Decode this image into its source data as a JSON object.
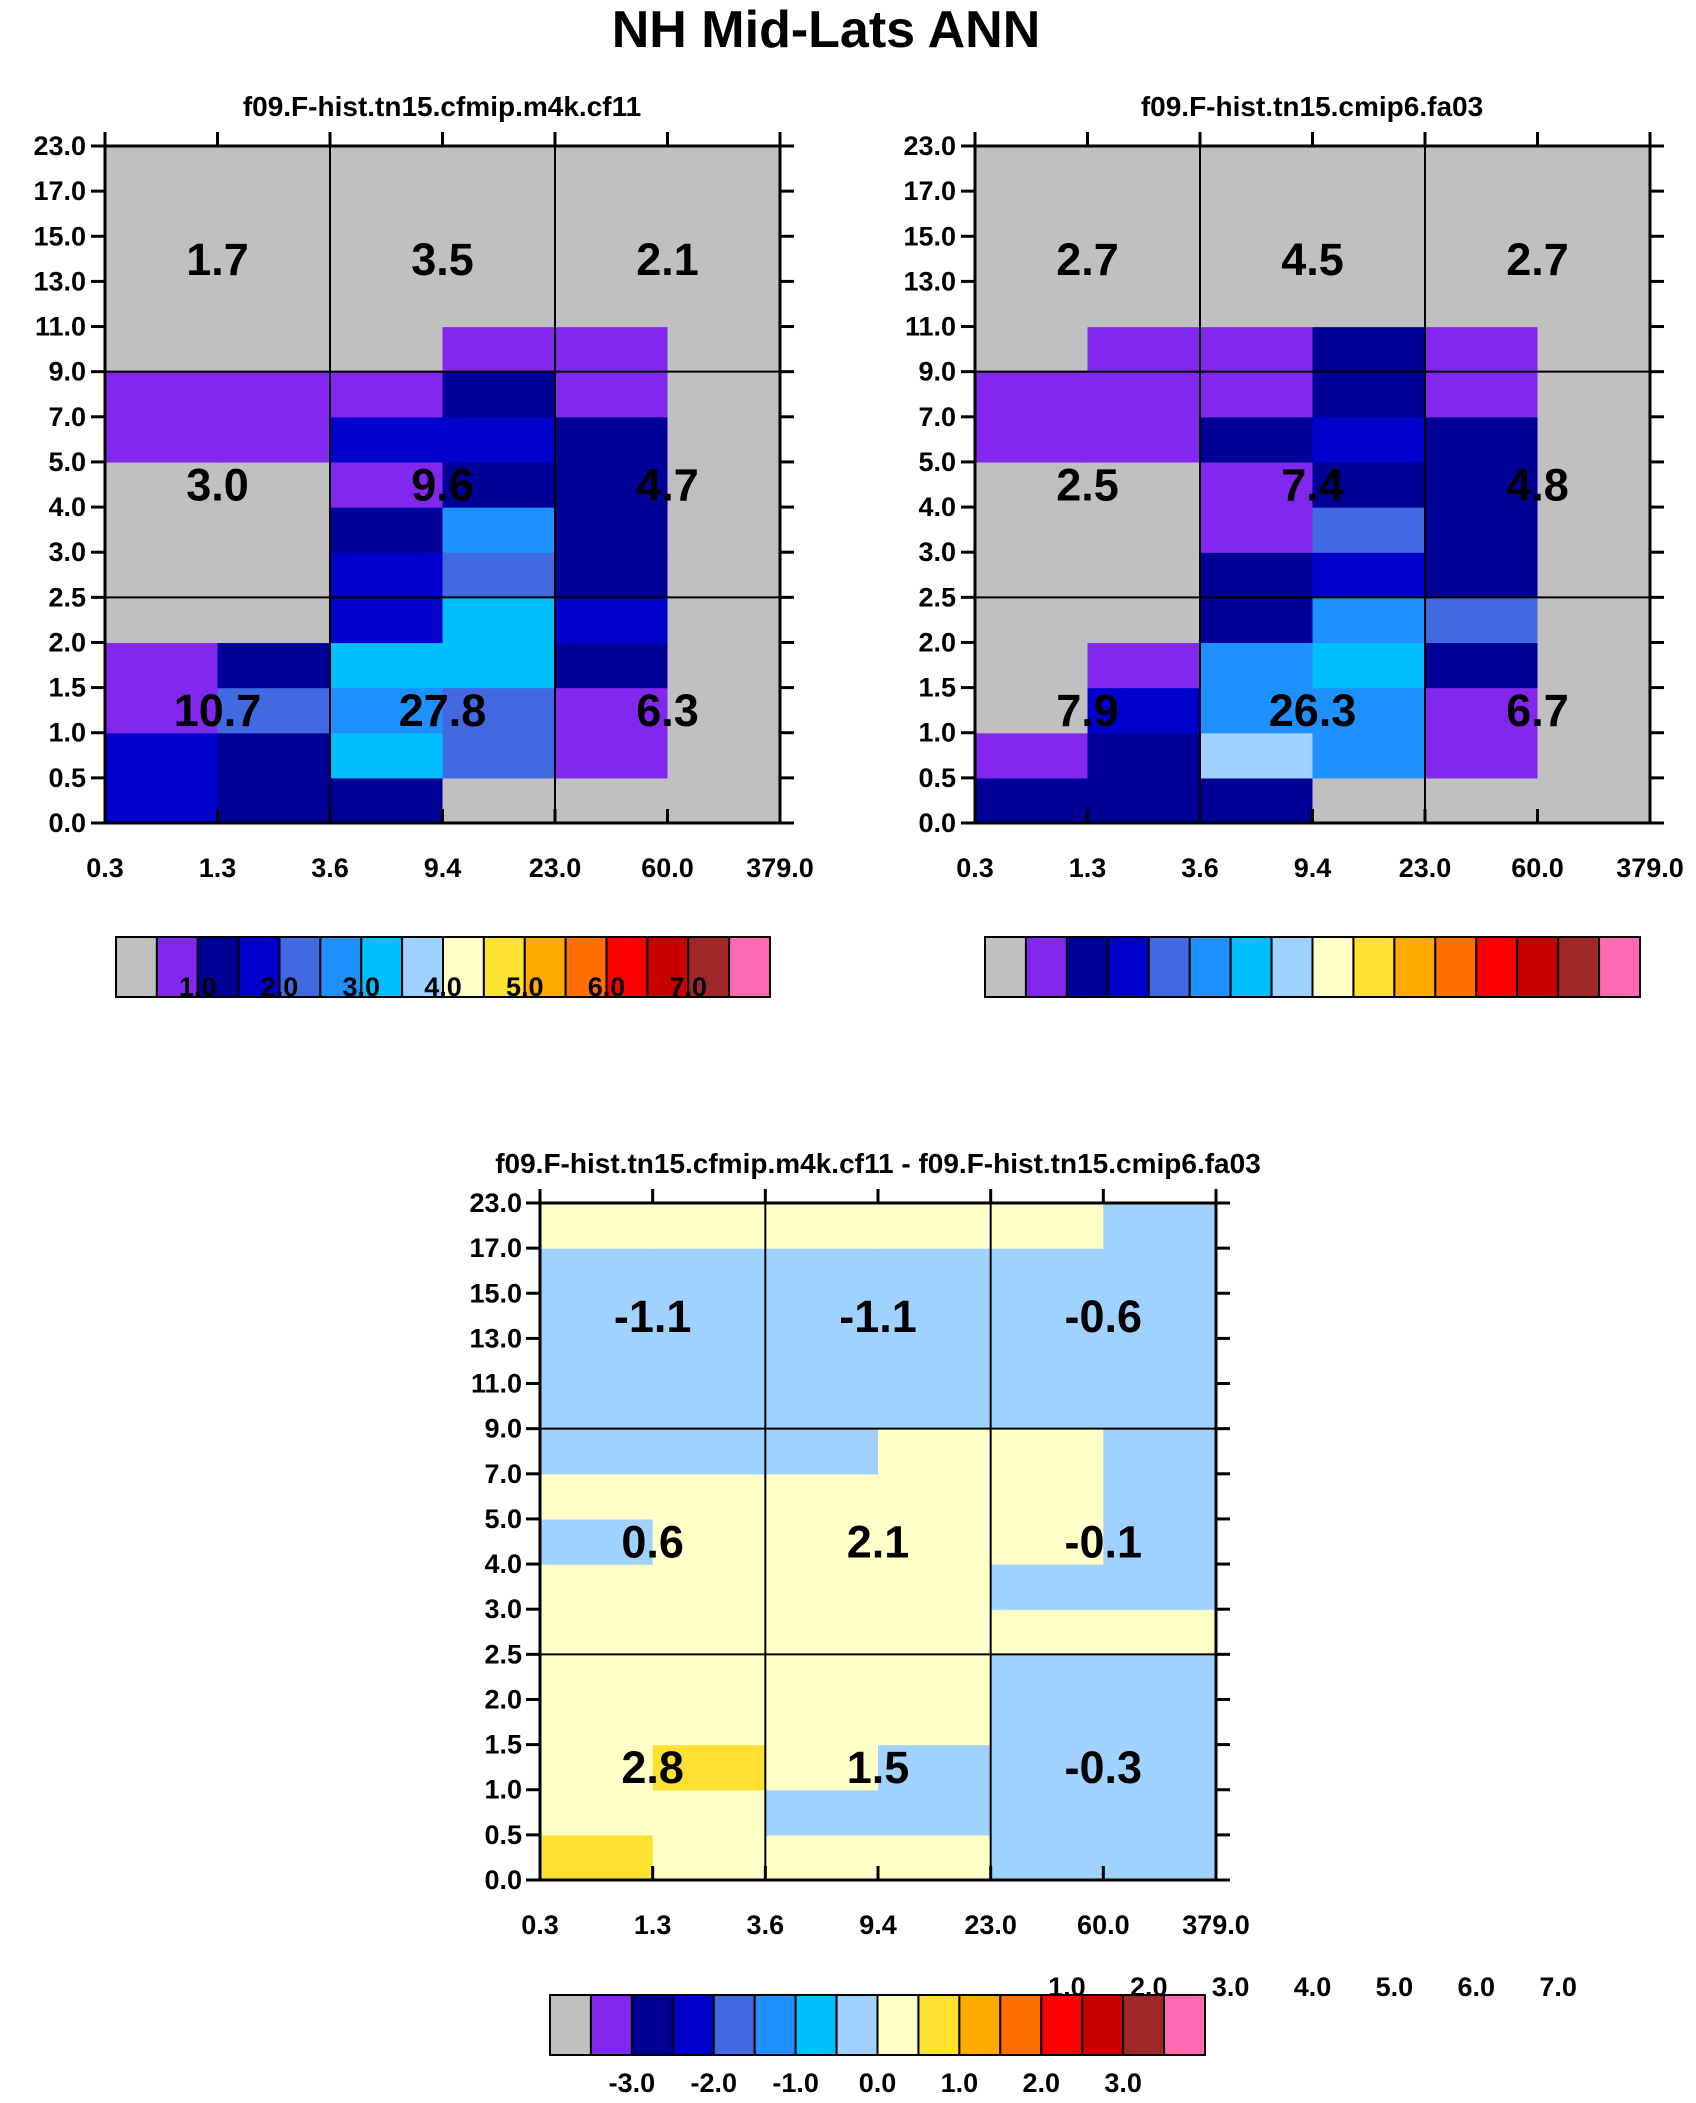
{
  "title": "NH Mid-Lats ANN",
  "palette": [
    "#c0c0c0",
    "#8228ee",
    "#000096",
    "#0000cd",
    "#4169e1",
    "#1e90ff",
    "#00bfff",
    "#a0d2ff",
    "#ffffc8",
    "#ffe132",
    "#ffaa00",
    "#ff6e00",
    "#ff0000",
    "#c80000",
    "#a02828",
    "#ff69b4"
  ],
  "chart_data": [
    {
      "type": "heatmap",
      "title": "f09.F-hist.tn15.cfmip.m4k.cf11",
      "xticks": [
        "0.3",
        "1.3",
        "3.6",
        "9.4",
        "23.0",
        "60.0",
        "379.0"
      ],
      "yticks": [
        "0.0",
        "0.5",
        "1.0",
        "1.5",
        "2.0",
        "2.5",
        "3.0",
        "4.0",
        "5.0",
        "7.0",
        "9.0",
        "11.0",
        "13.0",
        "15.0",
        "17.0",
        "23.0"
      ],
      "color_rows_bottom_to_top": [
        [
          3,
          2,
          2,
          0,
          0,
          0
        ],
        [
          3,
          2,
          6,
          4,
          1,
          0
        ],
        [
          1,
          4,
          5,
          4,
          1,
          0
        ],
        [
          1,
          2,
          6,
          6,
          2,
          0
        ],
        [
          0,
          0,
          3,
          6,
          3,
          0
        ],
        [
          0,
          0,
          3,
          4,
          2,
          0
        ],
        [
          0,
          0,
          2,
          5,
          2,
          0
        ],
        [
          0,
          0,
          1,
          2,
          2,
          0
        ],
        [
          1,
          1,
          3,
          3,
          2,
          0
        ],
        [
          1,
          1,
          1,
          2,
          1,
          0
        ],
        [
          0,
          0,
          0,
          1,
          1,
          0
        ],
        [
          0,
          0,
          0,
          0,
          0,
          0
        ],
        [
          0,
          0,
          0,
          0,
          0,
          0
        ],
        [
          0,
          0,
          0,
          0,
          0,
          0
        ],
        [
          0,
          0,
          0,
          0,
          0,
          0
        ]
      ],
      "region_values": [
        [
          "1.7",
          "3.5",
          "2.1"
        ],
        [
          "3.0",
          "9.6",
          "4.7"
        ],
        [
          "10.7",
          "27.8",
          "6.3"
        ]
      ],
      "colorbar_labels": [
        "1.0",
        "2.0",
        "3.0",
        "4.0",
        "5.0",
        "6.0",
        "7.0"
      ]
    },
    {
      "type": "heatmap",
      "title": "f09.F-hist.tn15.cmip6.fa03",
      "xticks": [
        "0.3",
        "1.3",
        "3.6",
        "9.4",
        "23.0",
        "60.0",
        "379.0"
      ],
      "yticks": [
        "0.0",
        "0.5",
        "1.0",
        "1.5",
        "2.0",
        "2.5",
        "3.0",
        "4.0",
        "5.0",
        "7.0",
        "9.0",
        "11.0",
        "13.0",
        "15.0",
        "17.0",
        "23.0"
      ],
      "color_rows_bottom_to_top": [
        [
          2,
          2,
          2,
          0,
          0,
          0
        ],
        [
          1,
          2,
          7,
          5,
          1,
          0
        ],
        [
          0,
          3,
          5,
          5,
          1,
          0
        ],
        [
          0,
          1,
          5,
          6,
          2,
          0
        ],
        [
          0,
          0,
          2,
          5,
          4,
          0
        ],
        [
          0,
          0,
          2,
          3,
          2,
          0
        ],
        [
          0,
          0,
          1,
          4,
          2,
          0
        ],
        [
          0,
          0,
          1,
          2,
          2,
          0
        ],
        [
          1,
          1,
          2,
          3,
          2,
          0
        ],
        [
          1,
          1,
          1,
          2,
          1,
          0
        ],
        [
          0,
          1,
          1,
          2,
          1,
          0
        ],
        [
          0,
          0,
          0,
          0,
          0,
          0
        ],
        [
          0,
          0,
          0,
          0,
          0,
          0
        ],
        [
          0,
          0,
          0,
          0,
          0,
          0
        ],
        [
          0,
          0,
          0,
          0,
          0,
          0
        ]
      ],
      "region_values": [
        [
          "2.7",
          "4.5",
          "2.7"
        ],
        [
          "2.5",
          "7.4",
          "4.8"
        ],
        [
          "7.9",
          "26.3",
          "6.7"
        ]
      ],
      "colorbar_labels": [
        "1.0",
        "2.0",
        "3.0",
        "4.0",
        "5.0",
        "6.0",
        "7.0"
      ]
    },
    {
      "type": "heatmap",
      "title": "f09.F-hist.tn15.cfmip.m4k.cf11 - f09.F-hist.tn15.cmip6.fa03",
      "xticks": [
        "0.3",
        "1.3",
        "3.6",
        "9.4",
        "23.0",
        "60.0",
        "379.0"
      ],
      "yticks": [
        "0.0",
        "0.5",
        "1.0",
        "1.5",
        "2.0",
        "2.5",
        "3.0",
        "4.0",
        "5.0",
        "7.0",
        "9.0",
        "11.0",
        "13.0",
        "15.0",
        "17.0",
        "23.0"
      ],
      "color_rows_bottom_to_top": [
        [
          9,
          8,
          8,
          8,
          7,
          7
        ],
        [
          8,
          8,
          7,
          7,
          7,
          7
        ],
        [
          8,
          9,
          8,
          7,
          7,
          7
        ],
        [
          8,
          8,
          8,
          8,
          7,
          7
        ],
        [
          8,
          8,
          8,
          8,
          7,
          7
        ],
        [
          8,
          8,
          8,
          8,
          8,
          8
        ],
        [
          8,
          8,
          8,
          8,
          7,
          7
        ],
        [
          7,
          8,
          8,
          8,
          8,
          7
        ],
        [
          8,
          8,
          8,
          8,
          8,
          7
        ],
        [
          7,
          7,
          7,
          8,
          8,
          7
        ],
        [
          7,
          7,
          7,
          7,
          7,
          7
        ],
        [
          7,
          7,
          7,
          7,
          7,
          7
        ],
        [
          7,
          7,
          7,
          7,
          7,
          7
        ],
        [
          7,
          7,
          7,
          7,
          7,
          7
        ],
        [
          8,
          8,
          8,
          8,
          8,
          7
        ]
      ],
      "region_values": [
        [
          "-1.1",
          "-1.1",
          "-0.6"
        ],
        [
          "0.6",
          "2.1",
          "-0.1"
        ],
        [
          "2.8",
          "1.5",
          "-0.3"
        ]
      ],
      "colorbar_labels": [
        "-3.0",
        "-2.0",
        "-1.0",
        "0.0",
        "1.0",
        "2.0",
        "3.0"
      ]
    }
  ]
}
